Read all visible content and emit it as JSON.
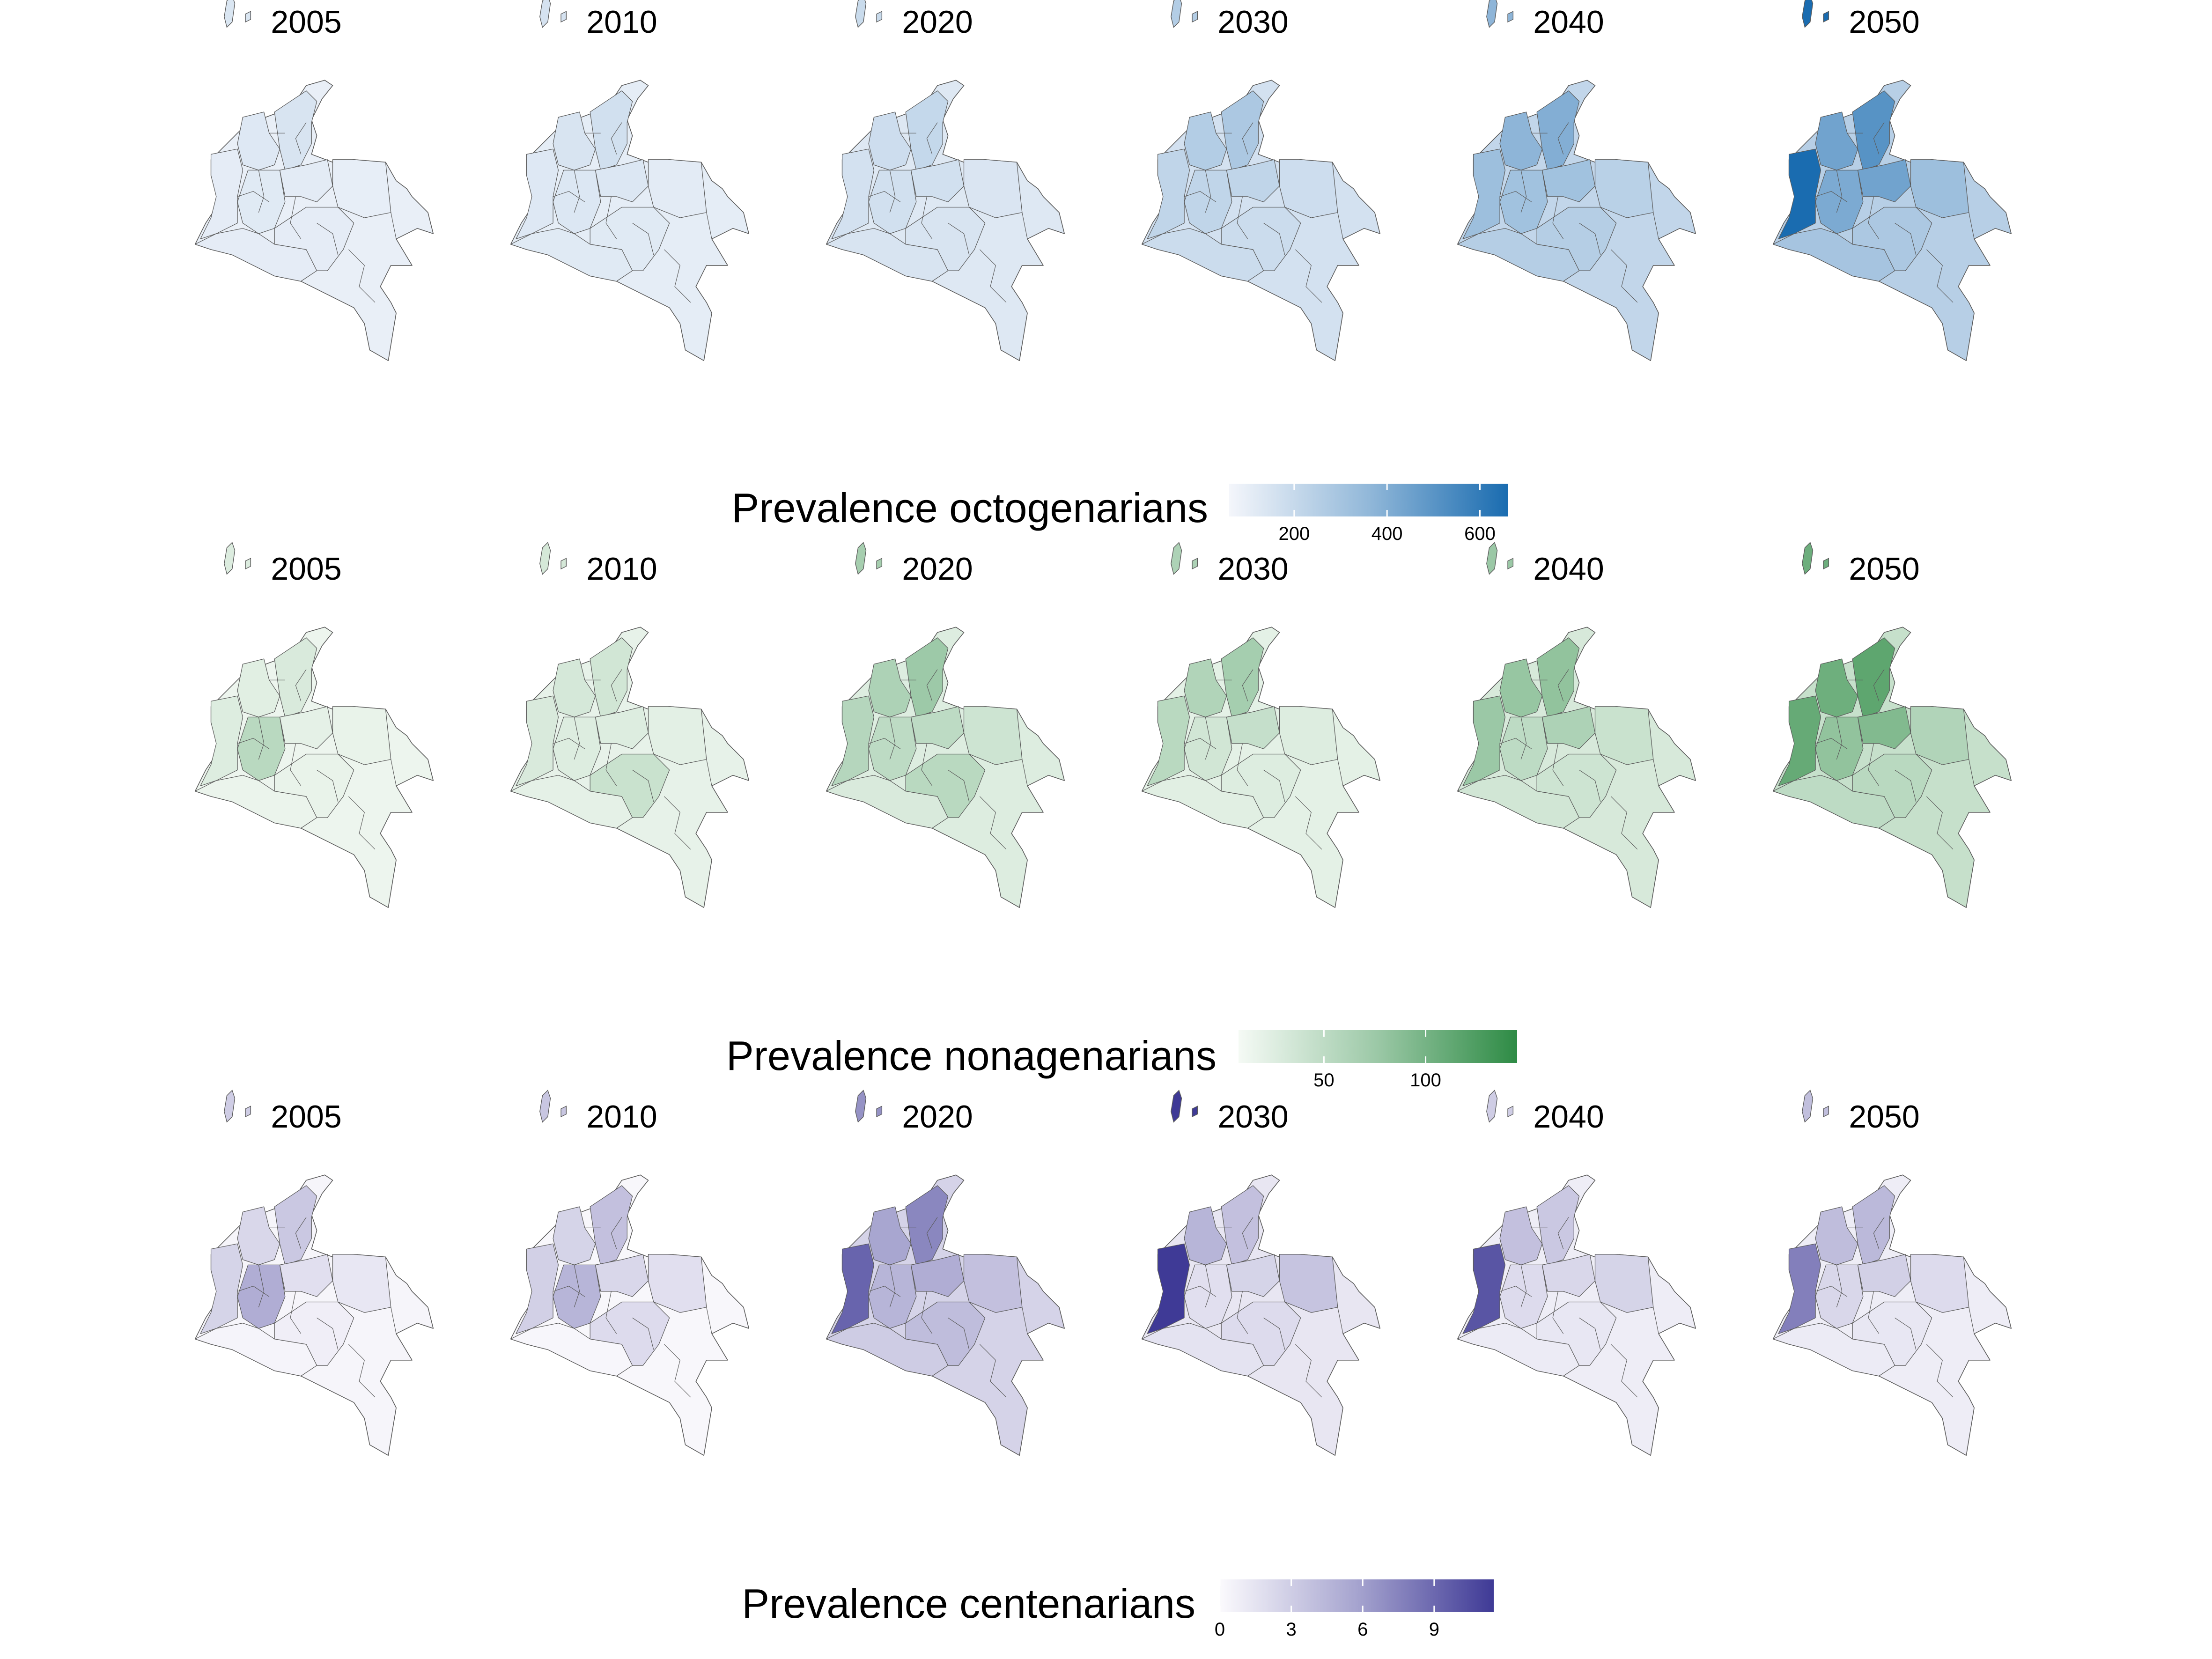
{
  "years": [
    "2005",
    "2010",
    "2020",
    "2030",
    "2040",
    "2050"
  ],
  "panels": [
    {
      "id": "octogenarians",
      "legend_title": "Prevalence octogenarians",
      "color_low": "#f4f6fb",
      "color_high": "#1a6cb0",
      "domain": [
        60,
        660
      ],
      "ticks": [
        200,
        400,
        600
      ],
      "levels": [
        [
          0.07,
          0.1,
          0.13,
          0.08,
          0.09,
          0.06,
          0.07,
          0.07
        ],
        [
          0.1,
          0.13,
          0.16,
          0.11,
          0.11,
          0.08,
          0.09,
          0.09
        ],
        [
          0.15,
          0.18,
          0.22,
          0.16,
          0.16,
          0.12,
          0.13,
          0.13
        ],
        [
          0.24,
          0.3,
          0.33,
          0.24,
          0.24,
          0.18,
          0.19,
          0.19
        ],
        [
          0.4,
          0.47,
          0.52,
          0.38,
          0.38,
          0.27,
          0.29,
          0.29
        ],
        [
          1.0,
          0.6,
          0.72,
          0.6,
          0.55,
          0.4,
          0.36,
          0.33
        ]
      ]
    },
    {
      "id": "nonagenarians",
      "legend_title": "Prevalence nonagenarians",
      "color_low": "#f5faf5",
      "color_high": "#2e8b45",
      "domain": [
        8,
        145
      ],
      "ticks": [
        50,
        100
      ],
      "levels": [
        [
          0.12,
          0.1,
          0.14,
          0.08,
          0.3,
          0.06,
          0.05,
          0.06
        ],
        [
          0.14,
          0.16,
          0.18,
          0.12,
          0.12,
          0.09,
          0.08,
          0.22
        ],
        [
          0.32,
          0.36,
          0.44,
          0.28,
          0.28,
          0.2,
          0.14,
          0.3
        ],
        [
          0.3,
          0.34,
          0.4,
          0.24,
          0.18,
          0.12,
          0.1,
          0.12
        ],
        [
          0.45,
          0.47,
          0.5,
          0.36,
          0.28,
          0.22,
          0.18,
          0.2
        ],
        [
          0.72,
          0.68,
          0.76,
          0.58,
          0.5,
          0.34,
          0.28,
          0.3
        ]
      ]
    },
    {
      "id": "centenarians",
      "legend_title": "Prevalence centenarians",
      "color_low": "#fbfafd",
      "color_high": "#3f3a96",
      "domain": [
        0,
        11.5
      ],
      "ticks": [
        0,
        3,
        6,
        9
      ],
      "levels": [
        [
          0.2,
          0.18,
          0.26,
          0.14,
          0.4,
          0.1,
          0.03,
          0.06
        ],
        [
          0.22,
          0.2,
          0.3,
          0.18,
          0.36,
          0.14,
          0.02,
          0.16
        ],
        [
          0.78,
          0.44,
          0.6,
          0.4,
          0.36,
          0.3,
          0.24,
          0.32
        ],
        [
          1.0,
          0.36,
          0.3,
          0.2,
          0.14,
          0.28,
          0.12,
          0.16
        ],
        [
          0.86,
          0.3,
          0.26,
          0.18,
          0.16,
          0.2,
          0.08,
          0.1
        ],
        [
          0.64,
          0.32,
          0.34,
          0.22,
          0.18,
          0.16,
          0.08,
          0.1
        ]
      ]
    }
  ]
}
